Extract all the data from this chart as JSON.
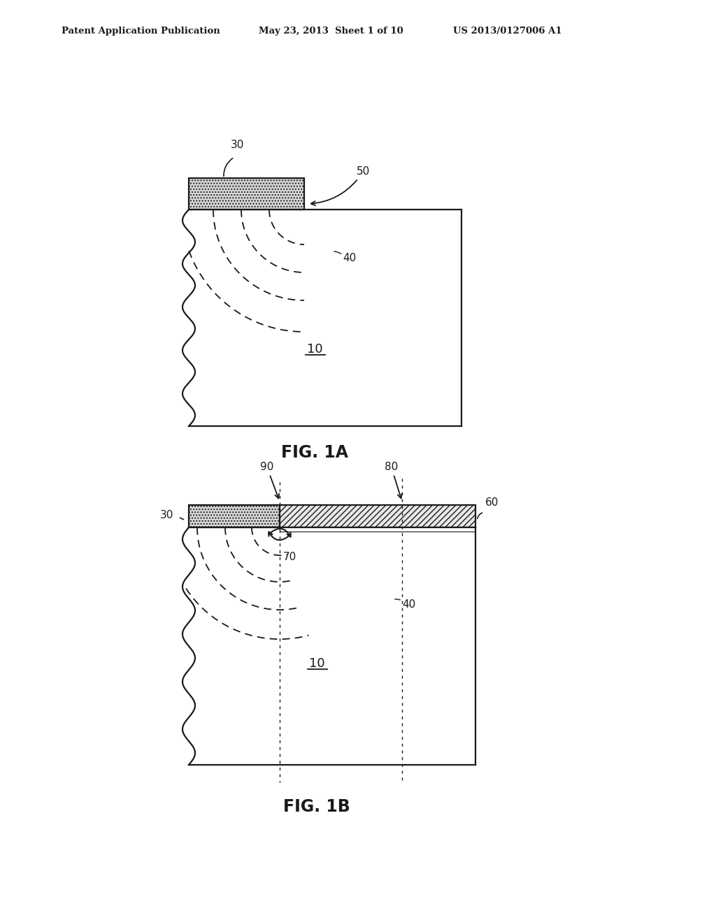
{
  "bg_color": "#ffffff",
  "header_left": "Patent Application Publication",
  "header_mid": "May 23, 2013  Sheet 1 of 10",
  "header_right": "US 2013/0127006 A1",
  "fig1a_label": "FIG. 1A",
  "fig1b_label": "FIG. 1B",
  "lc": "#1a1a1a"
}
